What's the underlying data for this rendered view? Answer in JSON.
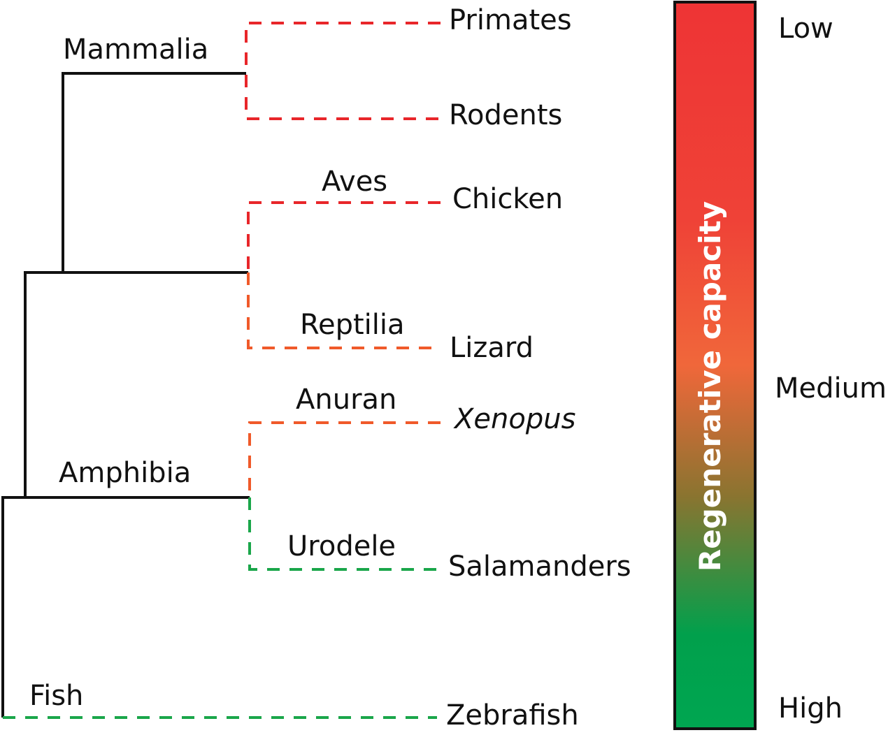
{
  "colors": {
    "low": "#e8262a",
    "medium": "#f05a2a",
    "high": "#1aa64a",
    "tree": "#111111"
  },
  "clades": {
    "mammalia": "Mammalia",
    "aves": "Aves",
    "reptilia": "Reptilia",
    "anuran": "Anuran",
    "amphibia": "Amphibia",
    "urodele": "Urodele",
    "fish": "Fish"
  },
  "species": {
    "primates": "Primates",
    "rodents": "Rodents",
    "chicken": "Chicken",
    "lizard": "Lizard",
    "xenopus": "Xenopus",
    "salamanders": "Salamanders",
    "zebrafish": "Zebrafish"
  },
  "scale": {
    "title": "Regenerative capacity",
    "low": "Low",
    "medium": "Medium",
    "high": "High"
  }
}
